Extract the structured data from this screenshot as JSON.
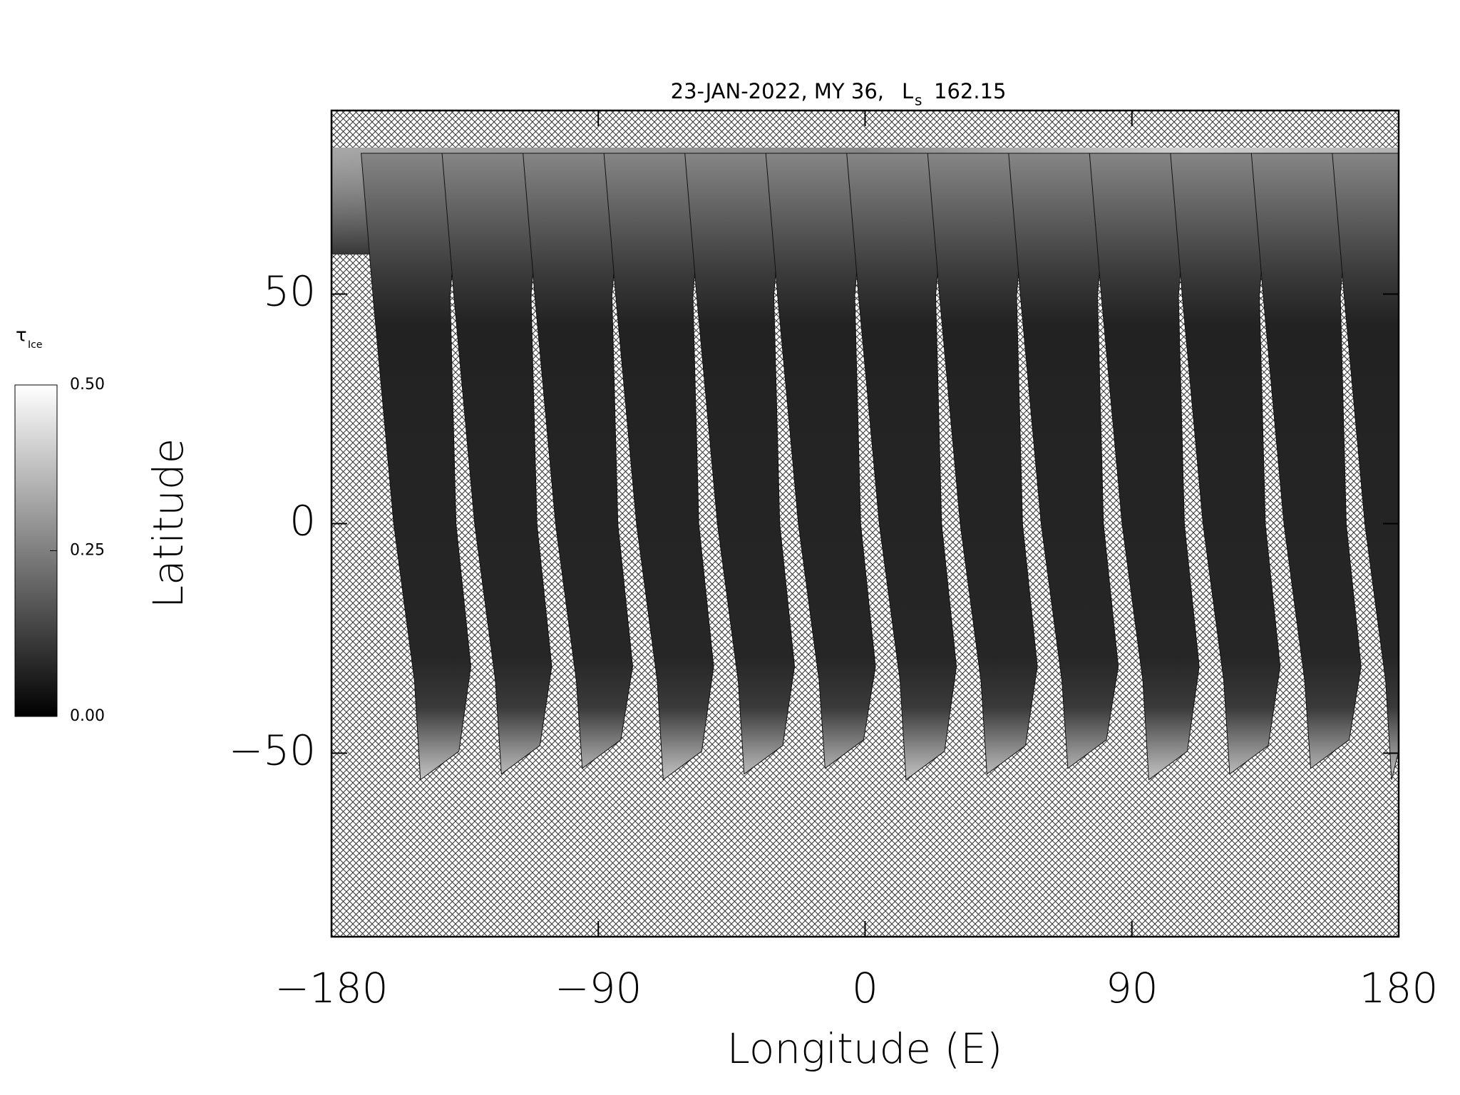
{
  "chart_data": {
    "type": "map",
    "title": {
      "main": "23-JAN-2022, MY 36,",
      "ls_symbol": "L",
      "ls_subscript": "s",
      "ls_value": 162.15
    },
    "x_label": "Longitude (E)",
    "y_label": "Latitude",
    "xlim": [
      -180,
      180
    ],
    "xticks": [
      {
        "value": -180,
        "label": "−180"
      },
      {
        "value": -90,
        "label": "−90"
      },
      0,
      90,
      180
    ],
    "ylim": [
      -90,
      90
    ],
    "yticks": [
      {
        "value": -50,
        "label": "−50"
      },
      0,
      50
    ],
    "colorbar": {
      "label": "τ",
      "label_subscript": "Ice",
      "lim": [
        0,
        0.5
      ],
      "ticks": [
        {
          "value": 0,
          "label": "0.00"
        },
        {
          "value": 0.25,
          "label": "0.25"
        },
        {
          "value": 0.5,
          "label": "0.50"
        }
      ],
      "colors": [
        "#000000",
        "#ffffff"
      ]
    }
  }
}
